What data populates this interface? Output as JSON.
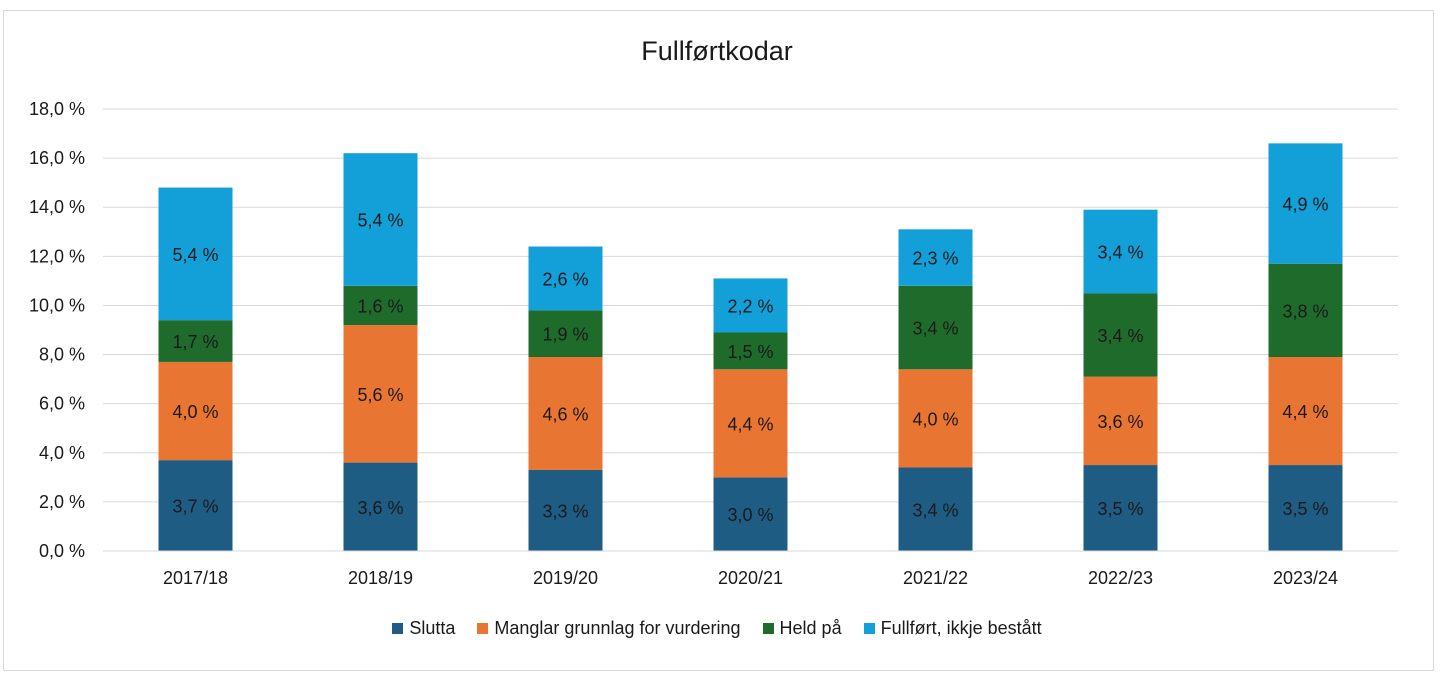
{
  "chart_data": {
    "type": "bar",
    "stacked": true,
    "title": "Fullførtkodar",
    "xlabel": "",
    "ylabel": "",
    "ylim": [
      0,
      18
    ],
    "yticks": [
      "0,0 %",
      "2,0 %",
      "4,0 %",
      "6,0 %",
      "8,0 %",
      "10,0 %",
      "12,0 %",
      "14,0 %",
      "16,0 %",
      "18,0 %"
    ],
    "ytick_values": [
      0,
      2,
      4,
      6,
      8,
      10,
      12,
      14,
      16,
      18
    ],
    "grid": true,
    "legend_position": "bottom",
    "categories": [
      "2017/18",
      "2018/19",
      "2019/20",
      "2020/21",
      "2021/22",
      "2022/23",
      "2023/24"
    ],
    "series": [
      {
        "name": "Slutta",
        "color": "#1f5c84",
        "values": [
          3.7,
          3.6,
          3.3,
          3.0,
          3.4,
          3.5,
          3.5
        ],
        "labels": [
          "3,7 %",
          "3,6 %",
          "3,3 %",
          "3,0 %",
          "3,4 %",
          "3,5 %",
          "3,5 %"
        ]
      },
      {
        "name": "Manglar grunnlag for vurdering",
        "color": "#e97533",
        "values": [
          4.0,
          5.6,
          4.6,
          4.4,
          4.0,
          3.6,
          4.4
        ],
        "labels": [
          "4,0 %",
          "5,6 %",
          "4,6 %",
          "4,4 %",
          "4,0 %",
          "3,6 %",
          "4,4 %"
        ]
      },
      {
        "name": "Held på",
        "color": "#1f6b2c",
        "values": [
          1.7,
          1.6,
          1.9,
          1.5,
          3.4,
          3.4,
          3.8
        ],
        "labels": [
          "1,7 %",
          "1,6 %",
          "1,9 %",
          "1,5 %",
          "3,4 %",
          "3,4 %",
          "3,8 %"
        ]
      },
      {
        "name": "Fullført, ikkje bestått",
        "color": "#139fd8",
        "values": [
          5.4,
          5.4,
          2.6,
          2.2,
          2.3,
          3.4,
          4.9
        ],
        "labels": [
          "5,4 %",
          "5,4 %",
          "2,6 %",
          "2,2 %",
          "2,3 %",
          "3,4 %",
          "4,9 %"
        ]
      }
    ]
  }
}
